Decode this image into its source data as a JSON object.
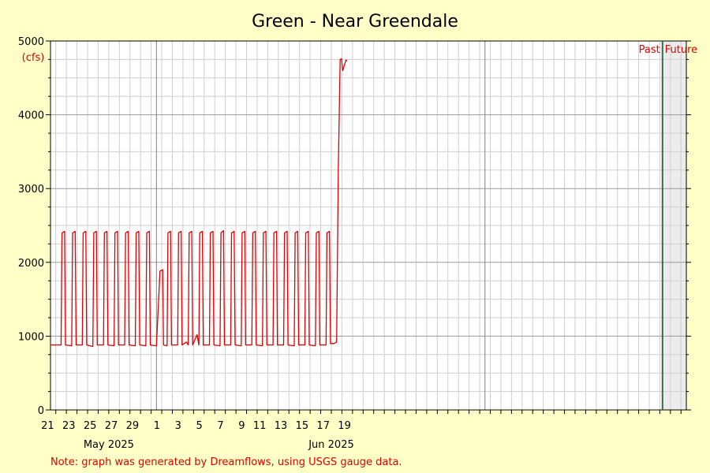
{
  "chart_data": {
    "type": "line",
    "title": "Green - Near Greendale",
    "ylabel": "(cfs)",
    "xlabel": "",
    "ylim": [
      0,
      5000
    ],
    "xlim": [
      "2025-04-20T12:00",
      "2025-06-19T12:00"
    ],
    "y_ticks": [
      0,
      1000,
      2000,
      3000,
      4000,
      5000
    ],
    "x_tick_labels": [
      {
        "date": "2025-04-21",
        "label": "21"
      },
      {
        "date": "2025-04-23",
        "label": "23"
      },
      {
        "date": "2025-04-25",
        "label": "25"
      },
      {
        "date": "2025-04-27",
        "label": "27"
      },
      {
        "date": "2025-04-29",
        "label": "29"
      },
      {
        "date": "2025-05-01",
        "label": "1"
      },
      {
        "date": "2025-05-03",
        "label": "3"
      },
      {
        "date": "2025-05-05",
        "label": "5"
      },
      {
        "date": "2025-05-07",
        "label": "7"
      },
      {
        "date": "2025-05-09",
        "label": "9"
      },
      {
        "date": "2025-05-11",
        "label": "11"
      },
      {
        "date": "2025-05-13",
        "label": "13"
      },
      {
        "date": "2025-05-15",
        "label": "15"
      },
      {
        "date": "2025-05-17",
        "label": "17"
      },
      {
        "date": "2025-05-19",
        "label": "19"
      }
    ],
    "month_labels": [
      {
        "date": "2025-04-26",
        "label": "May 2025"
      },
      {
        "date": "2025-05-17",
        "label": "Jun 2025"
      }
    ],
    "month_boundaries": [
      "2025-04-30",
      "2025-05-31"
    ],
    "now_marker": {
      "date": "2025-06-17T06:00",
      "past_label": "Past",
      "future_label": "Future"
    },
    "grid": true,
    "series": [
      {
        "color": "#e00000",
        "points": [
          [
            "2025-04-20T12:00",
            880
          ],
          [
            "2025-04-21T12:00",
            880
          ],
          [
            "2025-04-21T14:00",
            2400
          ],
          [
            "2025-04-21T20:00",
            2420
          ],
          [
            "2025-04-21T22:00",
            880
          ],
          [
            "2025-04-22T12:00",
            870
          ],
          [
            "2025-04-22T14:00",
            2400
          ],
          [
            "2025-04-22T20:00",
            2420
          ],
          [
            "2025-04-22T22:00",
            880
          ],
          [
            "2025-04-23T12:00",
            880
          ],
          [
            "2025-04-23T14:00",
            2400
          ],
          [
            "2025-04-23T20:00",
            2420
          ],
          [
            "2025-04-23T22:00",
            880
          ],
          [
            "2025-04-24T12:00",
            860
          ],
          [
            "2025-04-24T14:00",
            2400
          ],
          [
            "2025-04-24T20:00",
            2420
          ],
          [
            "2025-04-24T22:00",
            880
          ],
          [
            "2025-04-25T12:00",
            880
          ],
          [
            "2025-04-25T14:00",
            2400
          ],
          [
            "2025-04-25T20:00",
            2420
          ],
          [
            "2025-04-25T22:00",
            880
          ],
          [
            "2025-04-26T12:00",
            870
          ],
          [
            "2025-04-26T14:00",
            2400
          ],
          [
            "2025-04-26T20:00",
            2420
          ],
          [
            "2025-04-26T22:00",
            880
          ],
          [
            "2025-04-27T12:00",
            880
          ],
          [
            "2025-04-27T14:00",
            2400
          ],
          [
            "2025-04-27T20:00",
            2420
          ],
          [
            "2025-04-27T22:00",
            880
          ],
          [
            "2025-04-28T12:00",
            870
          ],
          [
            "2025-04-28T14:00",
            2400
          ],
          [
            "2025-04-28T20:00",
            2420
          ],
          [
            "2025-04-28T22:00",
            880
          ],
          [
            "2025-04-29T12:00",
            870
          ],
          [
            "2025-04-29T14:00",
            2400
          ],
          [
            "2025-04-29T20:00",
            2420
          ],
          [
            "2025-04-29T22:00",
            880
          ],
          [
            "2025-04-30T12:00",
            870
          ],
          [
            "2025-04-30T20:00",
            1880
          ],
          [
            "2025-05-01T02:00",
            1900
          ],
          [
            "2025-05-01T04:00",
            880
          ],
          [
            "2025-05-01T12:00",
            870
          ],
          [
            "2025-05-01T14:00",
            2400
          ],
          [
            "2025-05-01T20:00",
            2420
          ],
          [
            "2025-05-01T22:00",
            880
          ],
          [
            "2025-05-02T12:00",
            880
          ],
          [
            "2025-05-02T14:00",
            2400
          ],
          [
            "2025-05-02T20:00",
            2420
          ],
          [
            "2025-05-02T22:00",
            880
          ],
          [
            "2025-05-03T08:00",
            920
          ],
          [
            "2025-05-03T12:00",
            880
          ],
          [
            "2025-05-03T14:00",
            2400
          ],
          [
            "2025-05-03T20:00",
            2420
          ],
          [
            "2025-05-03T22:00",
            880
          ],
          [
            "2025-05-04T08:00",
            1020
          ],
          [
            "2025-05-04T12:00",
            880
          ],
          [
            "2025-05-04T14:00",
            2400
          ],
          [
            "2025-05-04T20:00",
            2420
          ],
          [
            "2025-05-04T22:00",
            880
          ],
          [
            "2025-05-05T12:00",
            880
          ],
          [
            "2025-05-05T14:00",
            2400
          ],
          [
            "2025-05-05T20:00",
            2420
          ],
          [
            "2025-05-05T22:00",
            880
          ],
          [
            "2025-05-06T12:00",
            870
          ],
          [
            "2025-05-06T14:00",
            2400
          ],
          [
            "2025-05-06T20:00",
            2430
          ],
          [
            "2025-05-06T22:00",
            880
          ],
          [
            "2025-05-07T12:00",
            880
          ],
          [
            "2025-05-07T14:00",
            2400
          ],
          [
            "2025-05-07T20:00",
            2420
          ],
          [
            "2025-05-07T22:00",
            880
          ],
          [
            "2025-05-08T12:00",
            870
          ],
          [
            "2025-05-08T14:00",
            2400
          ],
          [
            "2025-05-08T20:00",
            2420
          ],
          [
            "2025-05-08T22:00",
            880
          ],
          [
            "2025-05-09T12:00",
            880
          ],
          [
            "2025-05-09T14:00",
            2400
          ],
          [
            "2025-05-09T20:00",
            2420
          ],
          [
            "2025-05-09T22:00",
            880
          ],
          [
            "2025-05-10T12:00",
            870
          ],
          [
            "2025-05-10T14:00",
            2400
          ],
          [
            "2025-05-10T20:00",
            2420
          ],
          [
            "2025-05-10T22:00",
            880
          ],
          [
            "2025-05-11T12:00",
            880
          ],
          [
            "2025-05-11T14:00",
            2400
          ],
          [
            "2025-05-11T20:00",
            2420
          ],
          [
            "2025-05-11T22:00",
            880
          ],
          [
            "2025-05-12T12:00",
            880
          ],
          [
            "2025-05-12T14:00",
            2400
          ],
          [
            "2025-05-12T20:00",
            2420
          ],
          [
            "2025-05-12T22:00",
            880
          ],
          [
            "2025-05-13T12:00",
            870
          ],
          [
            "2025-05-13T14:00",
            2400
          ],
          [
            "2025-05-13T20:00",
            2420
          ],
          [
            "2025-05-13T22:00",
            880
          ],
          [
            "2025-05-14T12:00",
            880
          ],
          [
            "2025-05-14T14:00",
            2400
          ],
          [
            "2025-05-14T20:00",
            2420
          ],
          [
            "2025-05-14T22:00",
            880
          ],
          [
            "2025-05-15T12:00",
            870
          ],
          [
            "2025-05-15T14:00",
            2400
          ],
          [
            "2025-05-15T20:00",
            2420
          ],
          [
            "2025-05-15T22:00",
            880
          ],
          [
            "2025-05-16T12:00",
            880
          ],
          [
            "2025-05-16T14:00",
            2400
          ],
          [
            "2025-05-16T20:00",
            2420
          ],
          [
            "2025-05-16T22:00",
            900
          ],
          [
            "2025-05-17T06:00",
            900
          ],
          [
            "2025-05-17T12:00",
            920
          ],
          [
            "2025-05-17T16:00",
            3300
          ],
          [
            "2025-05-17T20:00",
            4750
          ],
          [
            "2025-05-17T23:00",
            4760
          ],
          [
            "2025-05-18T02:00",
            4600
          ],
          [
            "2025-05-18T07:00",
            4700
          ],
          [
            "2025-05-18T09:00",
            4740
          ],
          [
            "2025-05-18T12:00",
            4730
          ]
        ]
      }
    ],
    "note": "Note: graph was generated by Dreamflows, using USGS gauge data."
  }
}
